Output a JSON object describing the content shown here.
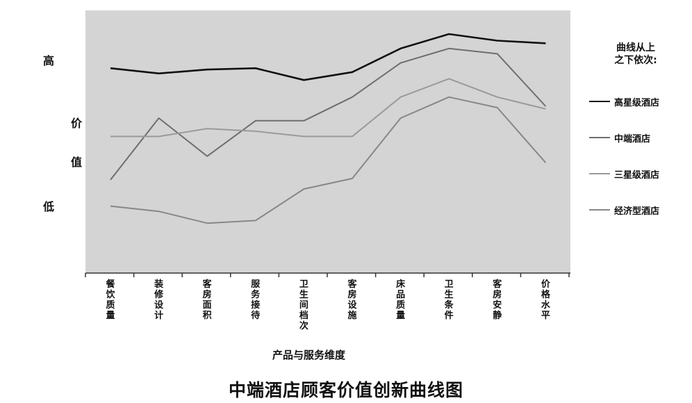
{
  "chart_data": {
    "type": "line",
    "title": "中端酒店顾客价值创新曲线图",
    "xlabel": "产品与服务维度",
    "ylabel": "价值",
    "ylabel_chars": [
      "价",
      "值"
    ],
    "y_high_label": "高",
    "y_low_label": "低",
    "ylim": [
      0,
      100
    ],
    "grid": false,
    "legend_position": "right",
    "legend_title": [
      "曲线从上",
      "之下依次:"
    ],
    "categories": [
      "餐饮质量",
      "装修设计",
      "客房面积",
      "服务接待",
      "卫生间档次",
      "客房设施",
      "床品质量",
      "卫生条件",
      "客房安静",
      "价格水平"
    ],
    "series": [
      {
        "name": "高星级酒店",
        "color": "#111111",
        "values": [
          78,
          76,
          77.5,
          78,
          73.5,
          76.5,
          85.5,
          91,
          88.5,
          87.5
        ]
      },
      {
        "name": "中端酒店",
        "color": "#6e6e6e",
        "values": [
          35.5,
          59,
          44.5,
          58,
          58,
          67,
          80,
          85.5,
          83.5,
          63.5
        ]
      },
      {
        "name": "三星级酒店",
        "color": "#9a9a9a",
        "values": [
          52,
          52,
          55,
          54,
          52,
          52,
          67,
          74,
          67,
          62.5
        ]
      },
      {
        "name": "经济型酒店",
        "color": "#878787",
        "values": [
          25.5,
          23.5,
          19,
          20,
          32,
          36,
          59,
          67,
          63,
          42
        ]
      }
    ]
  }
}
